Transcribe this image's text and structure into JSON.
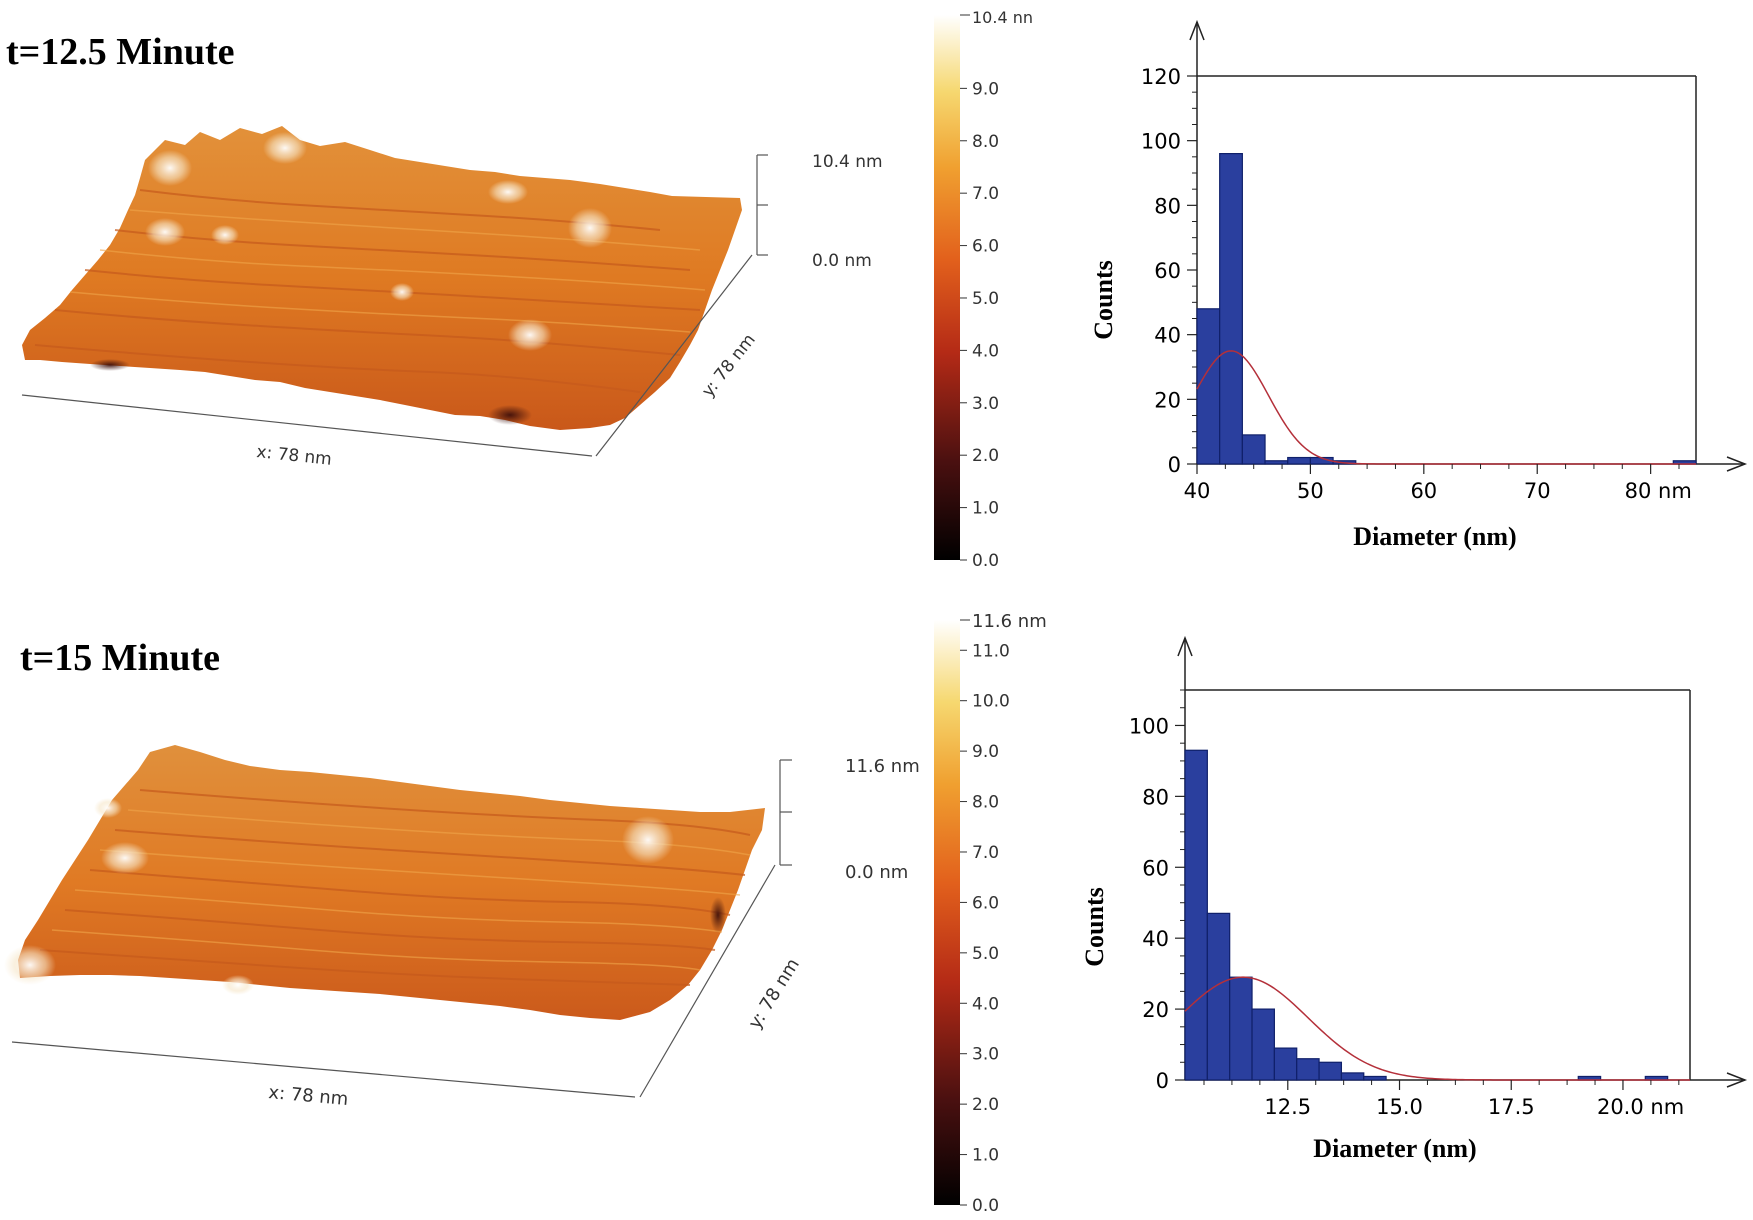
{
  "panels": [
    {
      "title": "t=12.5 Minute",
      "afm": {
        "x_label": "x: 78 nm",
        "y_label": "y: 78 nm",
        "z_top_label": "10.4 nm",
        "z_bottom_label": "0.0 nm"
      },
      "colorbar": {
        "max_label": "10.4 nn",
        "ticks": [
          "0.0",
          "1.0",
          "2.0",
          "3.0",
          "4.0",
          "5.0",
          "6.0",
          "7.0",
          "8.0",
          "9.0"
        ],
        "tick_values": [
          0,
          1,
          2,
          3,
          4,
          5,
          6,
          7,
          8,
          9
        ],
        "max_value": 10.4
      }
    },
    {
      "title": "t=15 Minute",
      "afm": {
        "x_label": "x: 78 nm",
        "y_label": "y: 78 nm",
        "z_top_label": "11.6 nm",
        "z_bottom_label": "0.0 nm"
      },
      "colorbar": {
        "max_label": "11.6 nm",
        "ticks": [
          "0.0",
          "1.0",
          "2.0",
          "3.0",
          "4.0",
          "5.0",
          "6.0",
          "7.0",
          "8.0",
          "9.0",
          "10.0",
          "11.0"
        ],
        "tick_values": [
          0,
          1,
          2,
          3,
          4,
          5,
          6,
          7,
          8,
          9,
          10,
          11
        ],
        "max_value": 11.6
      }
    }
  ],
  "colors": {
    "bar_fill": "#2a3f9e",
    "bar_stroke": "#10206a",
    "fit_curve": "#b4303a",
    "surface_mid": "#e07a25"
  },
  "chart_data": [
    {
      "type": "bar",
      "title": "",
      "xlabel": "Diameter (nm)",
      "ylabel": "Counts",
      "xlim": [
        40,
        84
      ],
      "ylim": [
        0,
        120
      ],
      "x_ticks": [
        40,
        50,
        60,
        70,
        80
      ],
      "x_tick_labels": [
        "40",
        "50",
        "60",
        "70",
        "80 nm"
      ],
      "y_ticks": [
        0,
        20,
        40,
        60,
        80,
        100,
        120
      ],
      "y_tick_labels": [
        "0",
        "20",
        "40",
        "60",
        "80",
        "100",
        "120"
      ],
      "bin_width": 2,
      "bins": [
        {
          "start": 40,
          "value": 48
        },
        {
          "start": 42,
          "value": 96
        },
        {
          "start": 44,
          "value": 9
        },
        {
          "start": 46,
          "value": 1
        },
        {
          "start": 48,
          "value": 2
        },
        {
          "start": 50,
          "value": 2
        },
        {
          "start": 52,
          "value": 1
        },
        {
          "start": 82,
          "value": 1
        }
      ],
      "fit": {
        "type": "gaussian",
        "mean": 43,
        "sigma": 3.3,
        "amplitude": 35
      }
    },
    {
      "type": "bar",
      "title": "",
      "xlabel": "Diameter (nm)",
      "ylabel": "Counts",
      "xlim": [
        10.2,
        21.5
      ],
      "ylim": [
        0,
        110
      ],
      "x_ticks": [
        12.5,
        15.0,
        17.5,
        20.0
      ],
      "x_tick_labels": [
        "12.5",
        "15.0",
        "17.5",
        "20.0 nm"
      ],
      "y_ticks": [
        0,
        20,
        40,
        60,
        80,
        100
      ],
      "y_tick_labels": [
        "0",
        "20",
        "40",
        "60",
        "80",
        "100"
      ],
      "bin_width": 0.5,
      "bins": [
        {
          "start": 10.2,
          "value": 93
        },
        {
          "start": 10.7,
          "value": 47
        },
        {
          "start": 11.2,
          "value": 29
        },
        {
          "start": 11.7,
          "value": 20
        },
        {
          "start": 12.2,
          "value": 9
        },
        {
          "start": 12.7,
          "value": 6
        },
        {
          "start": 13.2,
          "value": 5
        },
        {
          "start": 13.7,
          "value": 2
        },
        {
          "start": 14.2,
          "value": 1
        },
        {
          "start": 19.0,
          "value": 1
        },
        {
          "start": 20.5,
          "value": 1
        }
      ],
      "fit": {
        "type": "gaussian",
        "mean": 11.5,
        "sigma": 1.45,
        "amplitude": 29
      }
    }
  ]
}
